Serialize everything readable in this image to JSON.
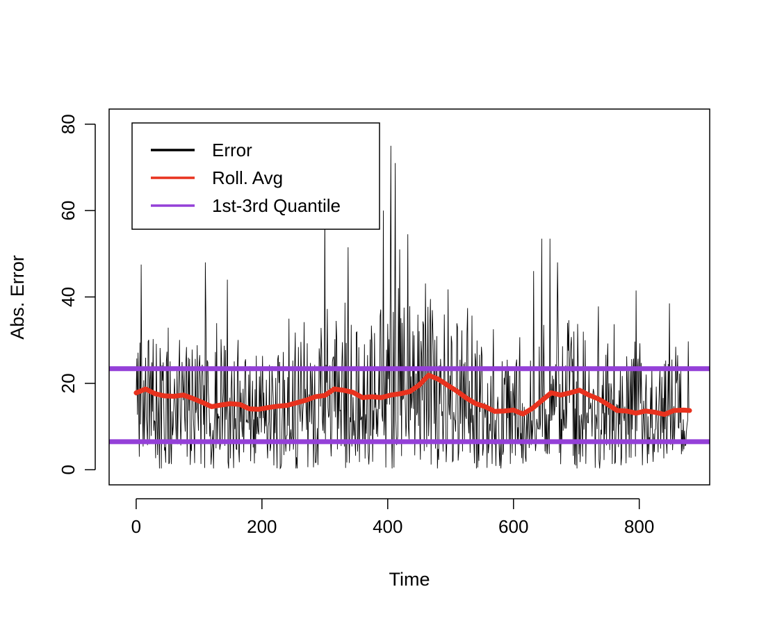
{
  "chart_data": {
    "type": "line",
    "title": "",
    "xlabel": "Time",
    "ylabel": "Abs. Error",
    "xlim": [
      -43,
      912
    ],
    "ylim": [
      -3.5,
      83.5
    ],
    "x_ticks": [
      0,
      200,
      400,
      600,
      800
    ],
    "y_ticks": [
      0,
      20,
      40,
      60,
      80
    ],
    "tick_labels": {
      "x": [
        "0",
        "200",
        "400",
        "600",
        "800"
      ],
      "y": [
        "0",
        "20",
        "40",
        "60",
        "80"
      ]
    },
    "legend": {
      "position": "top-left",
      "entries": [
        {
          "label": "Error",
          "color": "#000000"
        },
        {
          "label": "Roll. Avg",
          "color": "#e8321e"
        },
        {
          "label": "1st-3rd Quantile",
          "color": "#9440d8"
        }
      ]
    },
    "series": [
      {
        "name": "Error",
        "color": "#000000",
        "n": 880,
        "profile": {
          "x": [
            0,
            100,
            200,
            300,
            350,
            400,
            460,
            520,
            580,
            620,
            660,
            720,
            780,
            830,
            880
          ],
          "mean": [
            17,
            15.5,
            14.5,
            17.5,
            17,
            18.5,
            21,
            17,
            13.5,
            14,
            17.5,
            17.5,
            13.5,
            13,
            14
          ]
        },
        "spikes": [
          {
            "x": 8,
            "y": 47.5
          },
          {
            "x": 110,
            "y": 48
          },
          {
            "x": 145,
            "y": 44
          },
          {
            "x": 300,
            "y": 62
          },
          {
            "x": 337,
            "y": 51.5
          },
          {
            "x": 405,
            "y": 75
          },
          {
            "x": 412,
            "y": 71
          },
          {
            "x": 393,
            "y": 60
          },
          {
            "x": 432,
            "y": 54.5
          },
          {
            "x": 419,
            "y": 51
          },
          {
            "x": 632,
            "y": 46
          },
          {
            "x": 645,
            "y": 53.5
          },
          {
            "x": 658,
            "y": 53.5
          },
          {
            "x": 670,
            "y": 48
          },
          {
            "x": 795,
            "y": 41.5
          },
          {
            "x": 848,
            "y": 38.5
          }
        ]
      },
      {
        "name": "Roll. Avg",
        "color": "#e8321e",
        "x": [
          0,
          15,
          30,
          45,
          60,
          75,
          90,
          105,
          120,
          135,
          150,
          165,
          180,
          195,
          210,
          225,
          240,
          255,
          270,
          285,
          300,
          315,
          330,
          345,
          360,
          375,
          390,
          405,
          420,
          435,
          450,
          465,
          480,
          495,
          510,
          525,
          540,
          555,
          570,
          585,
          600,
          615,
          630,
          645,
          660,
          675,
          690,
          705,
          720,
          735,
          750,
          765,
          780,
          795,
          810,
          825,
          840,
          855,
          870,
          880
        ],
        "y": [
          17.8,
          18.7,
          17.6,
          17.1,
          17.0,
          17.3,
          16.5,
          15.6,
          14.6,
          15.0,
          15.3,
          15.1,
          14.1,
          14.0,
          14.4,
          14.7,
          14.9,
          15.5,
          16.1,
          16.9,
          17.2,
          18.7,
          18.4,
          17.9,
          16.7,
          16.9,
          16.7,
          17.3,
          17.6,
          18.1,
          19.6,
          21.9,
          21.0,
          19.6,
          18.2,
          16.6,
          15.3,
          14.6,
          13.5,
          13.6,
          13.8,
          12.9,
          14.2,
          16.0,
          17.8,
          17.3,
          17.8,
          18.4,
          17.3,
          16.4,
          15.1,
          13.7,
          13.6,
          13.1,
          13.6,
          13.3,
          12.8,
          13.7,
          13.8,
          13.7
        ]
      },
      {
        "name": "1st-3rd Quantile",
        "color": "#9440d8",
        "hlines": [
          6.5,
          23.4
        ]
      }
    ]
  }
}
